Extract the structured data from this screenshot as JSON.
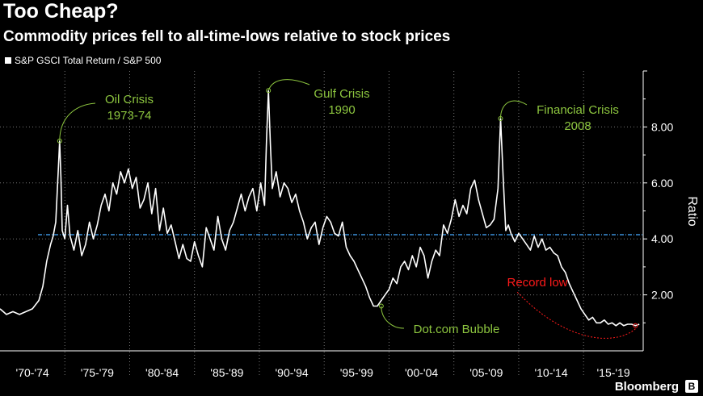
{
  "title": "Too Cheap?",
  "subtitle": "Commodity prices fell to all-time-lows relative to stock prices",
  "legend_label": "S&P GSCI Total Return / S&P 500",
  "brand": "Bloomberg",
  "colors": {
    "background": "#000000",
    "series": "#ffffff",
    "reference": "#3b8fd9",
    "annotation": "#8dc63f",
    "record": "#ff1a1a"
  },
  "chart_data": {
    "type": "line",
    "ylabel": "Ratio",
    "ylim": [
      0,
      10
    ],
    "xlim": [
      1970,
      2019.6
    ],
    "y_ticks": [
      2,
      4,
      6,
      8
    ],
    "y_tick_labels": [
      "2.00",
      "4.00",
      "6.00",
      "8.00"
    ],
    "x_tick_labels": [
      "'70-'74",
      "'75-'79",
      "'80-'84",
      "'85-'89",
      "'90-'94",
      "'95-'99",
      "'00-'04",
      "'05-'09",
      "'10-'14",
      "'15-'19"
    ],
    "x_tick_positions": [
      1970,
      1975,
      1980,
      1985,
      1990,
      1995,
      2000,
      2005,
      2010,
      2015
    ],
    "reference_line": 4.15,
    "grid": true,
    "series": [
      {
        "x": [
          1970.0,
          1970.5,
          1971.0,
          1971.5,
          1972.0,
          1972.5,
          1973.0,
          1973.3,
          1973.6,
          1973.9,
          1974.1,
          1974.3,
          1974.5,
          1974.6,
          1974.7,
          1974.8,
          1975.0,
          1975.2,
          1975.4,
          1975.7,
          1976.0,
          1976.3,
          1976.6,
          1976.9,
          1977.2,
          1977.5,
          1977.8,
          1978.1,
          1978.4,
          1978.7,
          1979.0,
          1979.3,
          1979.6,
          1979.9,
          1980.2,
          1980.5,
          1980.8,
          1981.1,
          1981.4,
          1981.7,
          1982.0,
          1982.3,
          1982.6,
          1982.9,
          1983.2,
          1983.5,
          1983.8,
          1984.1,
          1984.4,
          1984.7,
          1985.0,
          1985.3,
          1985.6,
          1985.9,
          1986.2,
          1986.5,
          1986.8,
          1987.1,
          1987.4,
          1987.7,
          1988.0,
          1988.3,
          1988.6,
          1988.9,
          1989.2,
          1989.5,
          1989.8,
          1990.1,
          1990.4,
          1990.55,
          1990.7,
          1990.85,
          1991.0,
          1991.3,
          1991.6,
          1991.9,
          1992.2,
          1992.5,
          1992.8,
          1993.1,
          1993.4,
          1993.7,
          1994.0,
          1994.3,
          1994.6,
          1994.9,
          1995.2,
          1995.5,
          1995.8,
          1996.1,
          1996.4,
          1996.7,
          1997.0,
          1997.3,
          1997.6,
          1997.9,
          1998.2,
          1998.5,
          1998.8,
          1999.1,
          1999.4,
          1999.7,
          2000.0,
          2000.3,
          2000.6,
          2000.9,
          2001.2,
          2001.5,
          2001.8,
          2002.1,
          2002.4,
          2002.7,
          2003.0,
          2003.3,
          2003.6,
          2003.9,
          2004.2,
          2004.5,
          2004.8,
          2005.1,
          2005.4,
          2005.7,
          2006.0,
          2006.3,
          2006.6,
          2006.9,
          2007.2,
          2007.5,
          2007.8,
          2008.1,
          2008.4,
          2008.6,
          2008.8,
          2009.0,
          2009.2,
          2009.4,
          2009.7,
          2010.0,
          2010.3,
          2010.6,
          2010.9,
          2011.2,
          2011.5,
          2011.8,
          2012.1,
          2012.4,
          2012.7,
          2013.0,
          2013.3,
          2013.6,
          2013.9,
          2014.2,
          2014.5,
          2014.8,
          2015.1,
          2015.4,
          2015.7,
          2016.0,
          2016.3,
          2016.6,
          2016.9,
          2017.2,
          2017.5,
          2017.8,
          2018.1,
          2018.4,
          2018.7,
          2019.0,
          2019.3
        ],
        "y": [
          1.5,
          1.3,
          1.4,
          1.3,
          1.4,
          1.5,
          1.8,
          2.3,
          3.2,
          3.8,
          4.1,
          4.6,
          6.5,
          7.5,
          6.2,
          4.3,
          4.0,
          5.2,
          4.1,
          3.6,
          4.3,
          3.4,
          3.8,
          4.6,
          4.0,
          4.5,
          5.2,
          5.6,
          5.0,
          6.0,
          5.6,
          6.4,
          6.0,
          6.5,
          5.8,
          6.2,
          5.1,
          5.4,
          6.0,
          4.9,
          5.8,
          4.3,
          5.1,
          4.2,
          4.5,
          3.9,
          3.3,
          3.8,
          3.3,
          3.2,
          3.9,
          3.4,
          3.0,
          4.4,
          4.0,
          3.6,
          4.8,
          4.0,
          3.6,
          4.3,
          4.6,
          5.1,
          5.6,
          5.0,
          5.5,
          5.8,
          5.0,
          6.0,
          5.2,
          7.5,
          9.3,
          7.4,
          5.8,
          6.4,
          5.5,
          6.0,
          5.8,
          5.3,
          5.6,
          5.0,
          4.6,
          4.0,
          4.4,
          4.6,
          3.8,
          4.4,
          4.8,
          4.6,
          4.2,
          4.1,
          4.6,
          3.7,
          3.4,
          3.2,
          2.9,
          2.6,
          2.3,
          1.9,
          1.6,
          1.6,
          1.8,
          2.0,
          2.2,
          2.6,
          2.4,
          3.0,
          3.2,
          2.9,
          3.4,
          3.0,
          3.7,
          3.4,
          2.6,
          3.2,
          3.6,
          3.4,
          4.5,
          4.2,
          4.7,
          5.4,
          4.8,
          5.2,
          4.9,
          5.8,
          6.1,
          5.4,
          4.9,
          4.4,
          4.5,
          4.7,
          5.8,
          8.3,
          6.2,
          4.3,
          4.5,
          4.2,
          3.9,
          4.2,
          4.0,
          3.8,
          3.6,
          4.1,
          3.7,
          4.0,
          3.6,
          3.7,
          3.5,
          3.4,
          3.0,
          2.8,
          2.4,
          2.1,
          1.8,
          1.5,
          1.3,
          1.1,
          1.2,
          1.0,
          1.0,
          1.1,
          0.95,
          1.0,
          0.9,
          1.0,
          0.9,
          0.95,
          0.95,
          0.9,
          0.95
        ]
      }
    ],
    "annotations": [
      {
        "lines": [
          "Oil Crisis",
          "1973-74"
        ],
        "x": 1974.6,
        "y": 7.5
      },
      {
        "lines": [
          "Gulf Crisis",
          "1990"
        ],
        "x": 1990.7,
        "y": 9.3
      },
      {
        "lines": [
          "Financial Crisis",
          "2008"
        ],
        "x": 2008.6,
        "y": 8.3
      },
      {
        "lines": [
          "Dot.com Bubble"
        ],
        "x": 1999.4,
        "y": 1.6
      },
      {
        "lines": [
          "Record low"
        ],
        "x": 2019.0,
        "y": 0.9
      }
    ]
  }
}
